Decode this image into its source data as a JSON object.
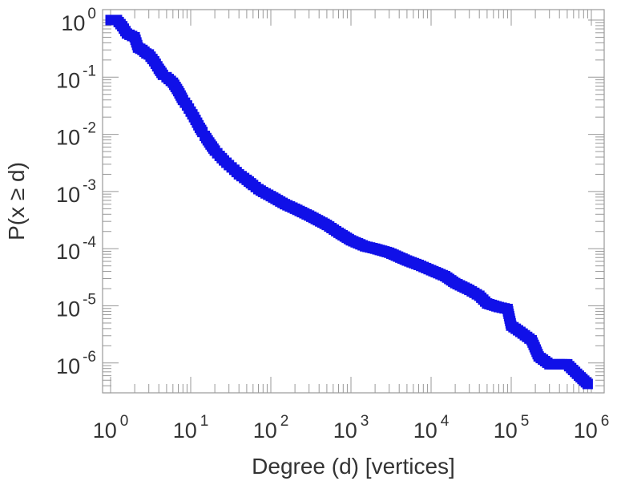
{
  "chart_data": {
    "type": "scatter",
    "xlabel": "Degree (d) [vertices]",
    "ylabel": "P(x ≥ d)",
    "xscale": "log",
    "yscale": "log",
    "xlim": [
      1,
      1000000
    ],
    "ylim": [
      4e-07,
      1
    ],
    "grid": false,
    "legend": "none",
    "x_ticks": [
      {
        "base": "10",
        "exp": "0"
      },
      {
        "base": "10",
        "exp": "1"
      },
      {
        "base": "10",
        "exp": "2"
      },
      {
        "base": "10",
        "exp": "3"
      },
      {
        "base": "10",
        "exp": "4"
      },
      {
        "base": "10",
        "exp": "5"
      },
      {
        "base": "10",
        "exp": "6"
      }
    ],
    "y_ticks": [
      {
        "base": "10",
        "exp": "0"
      },
      {
        "base": "10",
        "exp": "-1"
      },
      {
        "base": "10",
        "exp": "-2"
      },
      {
        "base": "10",
        "exp": "-3"
      },
      {
        "base": "10",
        "exp": "-4"
      },
      {
        "base": "10",
        "exp": "-5"
      },
      {
        "base": "10",
        "exp": "-6"
      }
    ],
    "marker_color": "#1010e8",
    "series": [
      {
        "marker": "square",
        "points": [
          [
            1,
            1.0
          ],
          [
            1.2,
            1.0
          ],
          [
            1.4,
            0.78
          ],
          [
            1.6,
            0.58
          ],
          [
            2,
            0.5
          ],
          [
            2.2,
            0.33
          ],
          [
            2.5,
            0.3
          ],
          [
            2.8,
            0.26
          ],
          [
            3,
            0.25
          ],
          [
            3.5,
            0.19
          ],
          [
            4,
            0.14
          ],
          [
            4.5,
            0.11
          ],
          [
            5,
            0.1
          ],
          [
            6,
            0.08
          ],
          [
            7,
            0.057
          ],
          [
            8,
            0.04
          ],
          [
            9,
            0.032
          ],
          [
            10,
            0.025
          ],
          [
            11,
            0.02
          ],
          [
            12,
            0.016
          ],
          [
            13,
            0.013
          ],
          [
            14,
            0.011
          ],
          [
            15,
            0.0094
          ],
          [
            17,
            0.0072
          ],
          [
            20,
            0.0052
          ],
          [
            23,
            0.0042
          ],
          [
            26,
            0.0035
          ],
          [
            30,
            0.0029
          ],
          [
            35,
            0.0024
          ],
          [
            40,
            0.002
          ],
          [
            50,
            0.0016
          ],
          [
            60,
            0.0013
          ],
          [
            70,
            0.0011
          ],
          [
            80,
            0.00098
          ],
          [
            100,
            0.00083
          ],
          [
            150,
            0.0006
          ],
          [
            200,
            0.0005
          ],
          [
            300,
            0.00038
          ],
          [
            500,
            0.00026
          ],
          [
            700,
            0.00019
          ],
          [
            1000,
            0.00014
          ],
          [
            1500,
            0.00011
          ],
          [
            2000,
            0.0001
          ],
          [
            3000,
            8.5e-05
          ],
          [
            5000,
            6.2e-05
          ],
          [
            7000,
            5.2e-05
          ],
          [
            10000,
            4.2e-05
          ],
          [
            15000,
            3.3e-05
          ],
          [
            20000,
            2.5e-05
          ],
          [
            30000,
            1.9e-05
          ],
          [
            40000,
            1.5e-05
          ],
          [
            50000,
            1.1e-05
          ],
          [
            70000,
            9.5e-06
          ],
          [
            90000,
            8.8e-06
          ],
          [
            100000,
            4.5e-06
          ],
          [
            130000,
            3.5e-06
          ],
          [
            180000,
            2.5e-06
          ],
          [
            220000,
            1.3e-06
          ],
          [
            300000,
            9.5e-07
          ],
          [
            500000,
            9.5e-07
          ],
          [
            700000,
            6e-07
          ],
          [
            900000,
            4.3e-07
          ]
        ]
      }
    ]
  }
}
